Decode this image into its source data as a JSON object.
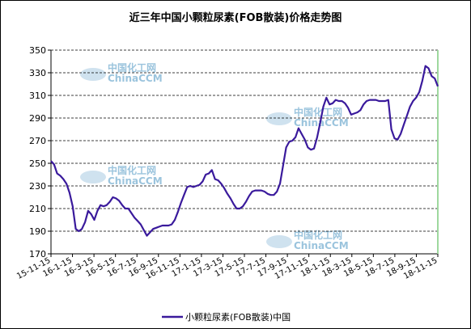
{
  "chart_data": {
    "type": "line",
    "title": "近三年中国小颗粒尿素(FOB散装)价格走势图",
    "xlabel": "",
    "ylabel": "",
    "ylim": [
      170,
      350
    ],
    "yticks": [
      170,
      190,
      210,
      230,
      250,
      270,
      290,
      310,
      330,
      350
    ],
    "grid": "horizontal-dashed",
    "legend_position": "bottom-center",
    "x_tick_labels": [
      "15-11-15",
      "16-1-15",
      "16-3-15",
      "16-5-15",
      "16-7-15",
      "16-9-15",
      "16-11-15",
      "17-1-15",
      "17-3-15",
      "17-5-15",
      "17-7-15",
      "17-9-15",
      "17-11-15",
      "18-1-15",
      "18-3-15",
      "18-5-15",
      "18-7-15",
      "18-9-15",
      "18-11-15"
    ],
    "series": [
      {
        "name": "小颗粒尿素(FOB散装)中国",
        "color": "#3a1a9c",
        "values": [
          252,
          249,
          241,
          239,
          236,
          232,
          224,
          212,
          192,
          190,
          192,
          198,
          208,
          205,
          200,
          208,
          213,
          212,
          213,
          216,
          220,
          219,
          217,
          213,
          210,
          210,
          206,
          202,
          199,
          196,
          191,
          186,
          189,
          192,
          193,
          194,
          195,
          195,
          195,
          196,
          200,
          207,
          215,
          222,
          229,
          230,
          229,
          230,
          231,
          234,
          240,
          241,
          244,
          236,
          235,
          232,
          228,
          223,
          219,
          214,
          210,
          210,
          212,
          216,
          221,
          225,
          226,
          226,
          226,
          225,
          223,
          222,
          222,
          225,
          232,
          248,
          264,
          269,
          270,
          273,
          281,
          276,
          271,
          264,
          262,
          263,
          273,
          286,
          300,
          308,
          302,
          303,
          306,
          305,
          305,
          303,
          299,
          293,
          294,
          295,
          297,
          302,
          305,
          306,
          306,
          306,
          305,
          305,
          305,
          306,
          280,
          272,
          271,
          276,
          284,
          292,
          300,
          305,
          308,
          313,
          323,
          336,
          334,
          327,
          325,
          318
        ]
      }
    ]
  },
  "watermarks": [
    "中国化工网",
    "ChinaCCM"
  ],
  "colors": {
    "grid": "#000000",
    "plot_bg": "#ffffff",
    "right_edge": "#9ed89e"
  }
}
